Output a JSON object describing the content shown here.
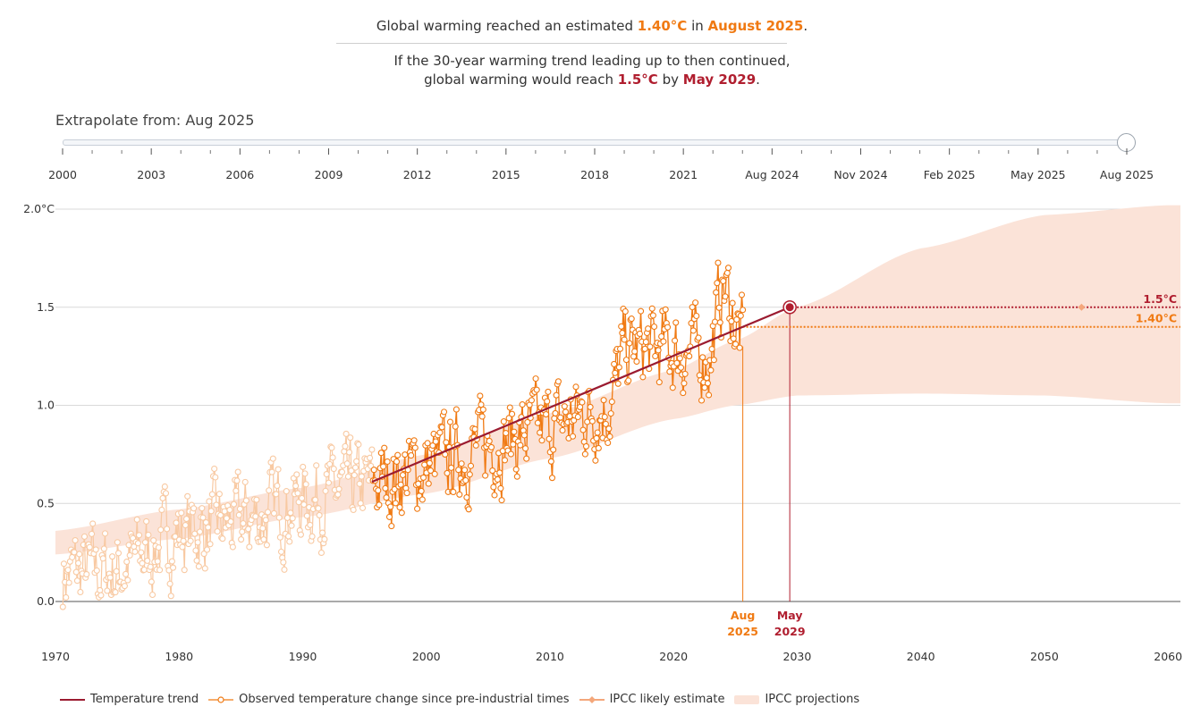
{
  "headline": {
    "line1_pre": "Global warming reached an estimated",
    "line1_value": "1.40°C",
    "line1_mid": "in",
    "line1_date": "August 2025",
    "line1_end": ".",
    "line2": "If the 30-year warming trend leading up to then continued,",
    "line3_pre": "global warming would reach",
    "line3_value": "1.5°C",
    "line3_mid": "by",
    "line3_date": "May 2029",
    "line3_end": "."
  },
  "slider": {
    "label": "Extrapolate from: Aug 2025",
    "ticks": [
      "2000",
      "2003",
      "2006",
      "2009",
      "2012",
      "2015",
      "2018",
      "2021",
      "Aug 2024",
      "Nov 2024",
      "Feb 2025",
      "May 2025",
      "Aug 2025"
    ],
    "selected": "Aug 2025",
    "position": 1.0
  },
  "colors": {
    "trend": "#9b1b30",
    "observed": "#f07a13",
    "observed_faded": "#f8c9a2",
    "ipcc_band": "#fbe3d8",
    "marker_15": "#b01e2f",
    "grid": "#d9d9d9"
  },
  "chart_data": {
    "type": "line",
    "xlim": [
      1970,
      2061
    ],
    "ylim": [
      -0.3,
      2.0
    ],
    "x_ticks": [
      1970,
      1980,
      1990,
      2000,
      2010,
      2020,
      2030,
      2040,
      2050,
      2060
    ],
    "x_tick_labels": [
      "1970",
      "1980",
      "1990",
      "2000",
      "2010",
      "2020",
      "2030",
      "2040",
      "2050",
      "2060"
    ],
    "y_ticks": [
      0,
      0.5,
      1.0,
      1.5,
      2.0
    ],
    "y_tick_labels": [
      "0.0",
      "0.5",
      "1.0",
      "1.5",
      "2.0°C"
    ],
    "trend_line": {
      "x": [
        1995.6,
        2029.4
      ],
      "y": [
        0.61,
        1.5
      ]
    },
    "observed_anchors": [
      [
        1970,
        0.14
      ],
      [
        1975,
        0.16
      ],
      [
        1980,
        0.35
      ],
      [
        1985,
        0.4
      ],
      [
        1990,
        0.52
      ],
      [
        1995,
        0.58
      ],
      [
        2000,
        0.68
      ],
      [
        2005,
        0.8
      ],
      [
        2010,
        0.88
      ],
      [
        2015,
        1.02
      ],
      [
        2016,
        1.28
      ],
      [
        2020,
        1.28
      ],
      [
        2023,
        1.25
      ],
      [
        2024,
        1.62
      ],
      [
        2025,
        1.42
      ],
      [
        2025.6,
        1.32
      ]
    ],
    "observed_range": {
      "start": 1970.6,
      "end": 2025.6,
      "emphasized_from": 1995.6,
      "points_per_year": 12
    },
    "ipcc_band": {
      "x": [
        1970,
        1980,
        1990,
        2000,
        2010,
        2020,
        2025,
        2030,
        2040,
        2050,
        2060,
        2061
      ],
      "upper": [
        0.36,
        0.47,
        0.58,
        0.75,
        0.96,
        1.18,
        1.33,
        1.5,
        1.8,
        1.97,
        2.02,
        2.02
      ],
      "lower": [
        0.24,
        0.32,
        0.43,
        0.55,
        0.73,
        0.93,
        1.0,
        1.05,
        1.06,
        1.05,
        1.01,
        1.01
      ]
    },
    "ipcc_likely": {
      "x": [
        2053
      ],
      "y": [
        1.5
      ]
    },
    "ref_lines": [
      {
        "y": 1.5,
        "x_start": 2029.4,
        "label": "1.5°C",
        "color": "#b01e2f"
      },
      {
        "y": 1.4,
        "x_start": 2025.6,
        "label": "1.40°C",
        "color": "#f07a13"
      }
    ],
    "vlines": [
      {
        "x": 2025.6,
        "label_top": "Aug",
        "label_bottom": "2025",
        "color": "#f07a13"
      },
      {
        "x": 2029.4,
        "label_top": "May",
        "label_bottom": "2029",
        "color": "#b01e2f"
      }
    ],
    "crossing_point": {
      "x": 2029.4,
      "y": 1.5
    },
    "series": [
      {
        "name": "Temperature trend"
      },
      {
        "name": "Observed temperature change since pre-industrial times"
      },
      {
        "name": "IPCC likely estimate"
      },
      {
        "name": "IPCC projections"
      }
    ]
  }
}
